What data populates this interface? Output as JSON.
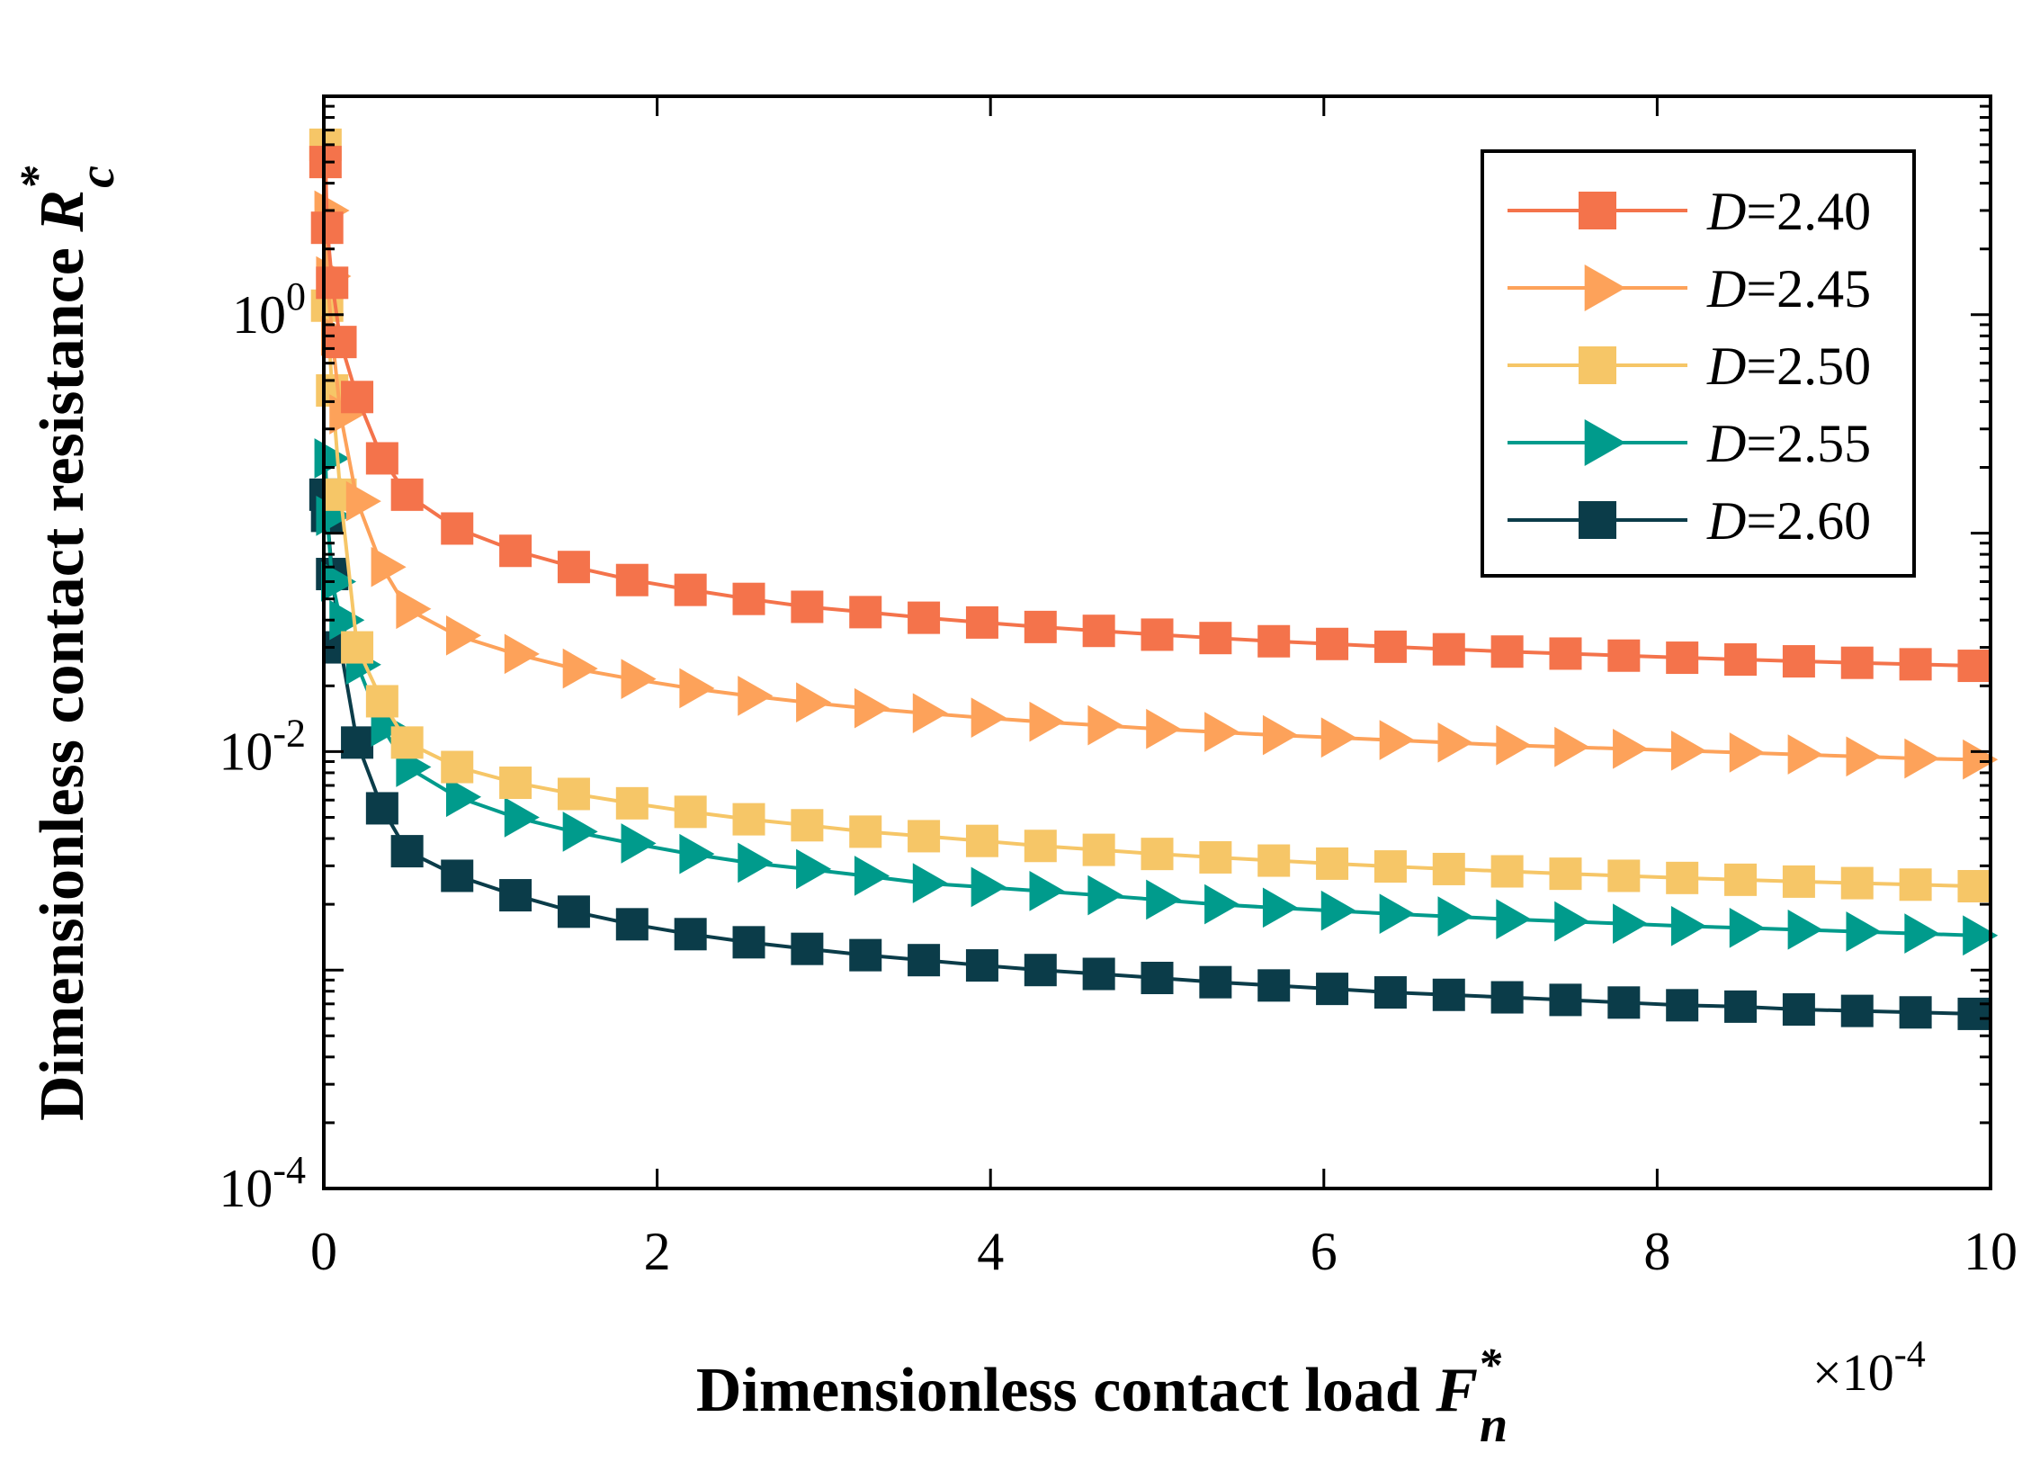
{
  "chart_data": {
    "type": "line",
    "xlabel": "Dimensionless contact load",
    "xlabel_symbol": "F",
    "xlabel_superscript": "*",
    "xlabel_subscript": "n",
    "ylabel": "Dimensionless contact resistance",
    "ylabel_symbol": "R",
    "ylabel_superscript": "*",
    "ylabel_subscript": "c",
    "x_multiplier": "×10",
    "x_multiplier_exponent": "-4",
    "x_scale_factor": 0.0001,
    "xlim": [
      0,
      10
    ],
    "ylim": [
      0.0001,
      10
    ],
    "yscale": "log",
    "x_ticks": [
      "0",
      "2",
      "4",
      "6",
      "8",
      "10"
    ],
    "y_ticks": [
      {
        "value": 1,
        "base": "10",
        "exp": "0"
      },
      {
        "value": 0.01,
        "base": "10",
        "exp": "-2"
      },
      {
        "value": 0.0001,
        "base": "10",
        "exp": "-4"
      }
    ],
    "legend_position": "top-right",
    "x": [
      0.01,
      0.02,
      0.05,
      0.1,
      0.2,
      0.35,
      0.5,
      0.8,
      1.15,
      1.5,
      1.85,
      2.2,
      2.55,
      2.9,
      3.25,
      3.6,
      3.95,
      4.3,
      4.65,
      5.0,
      5.35,
      5.7,
      6.05,
      6.4,
      6.75,
      7.1,
      7.45,
      7.8,
      8.15,
      8.5,
      8.85,
      9.2,
      9.55,
      9.9
    ],
    "series": [
      {
        "name": "D=2.40",
        "label_var": "D",
        "label_val": "=2.40",
        "marker": "square",
        "color": "#F4734B",
        "values": [
          5.0,
          2.5,
          1.4,
          0.75,
          0.42,
          0.22,
          0.15,
          0.105,
          0.083,
          0.07,
          0.061,
          0.055,
          0.05,
          0.046,
          0.0435,
          0.041,
          0.039,
          0.0372,
          0.0357,
          0.0343,
          0.0331,
          0.032,
          0.0311,
          0.0302,
          0.0294,
          0.0287,
          0.0281,
          0.0275,
          0.0269,
          0.0264,
          0.0259,
          0.0255,
          0.0251,
          0.0247
        ]
      },
      {
        "name": "D=2.45",
        "label_var": "D",
        "label_val": "=2.45",
        "marker": "triangle-right",
        "color": "#FDA25A",
        "values": [
          3.0,
          1.5,
          0.8,
          0.35,
          0.14,
          0.07,
          0.045,
          0.034,
          0.028,
          0.024,
          0.0215,
          0.0195,
          0.018,
          0.0168,
          0.0158,
          0.015,
          0.0143,
          0.0137,
          0.0132,
          0.0127,
          0.0123,
          0.0119,
          0.0116,
          0.0113,
          0.011,
          0.0107,
          0.0105,
          0.0103,
          0.0101,
          0.0099,
          0.0097,
          0.0095,
          0.0093,
          0.0092
        ]
      },
      {
        "name": "D=2.50",
        "label_var": "D",
        "label_val": "=2.50",
        "marker": "square",
        "color": "#F6C667",
        "values": [
          6.0,
          1.1,
          0.45,
          0.15,
          0.03,
          0.017,
          0.011,
          0.0085,
          0.0072,
          0.0064,
          0.0058,
          0.0053,
          0.0049,
          0.0046,
          0.0043,
          0.0041,
          0.0039,
          0.0037,
          0.00355,
          0.0034,
          0.00328,
          0.00317,
          0.00307,
          0.00298,
          0.0029,
          0.00283,
          0.00276,
          0.0027,
          0.00264,
          0.00259,
          0.00254,
          0.0025,
          0.00246,
          0.00242
        ]
      },
      {
        "name": "D=2.55",
        "label_var": "D",
        "label_val": "=2.55",
        "marker": "triangle-right",
        "color": "#009B8C",
        "values": [
          0.22,
          0.12,
          0.06,
          0.04,
          0.025,
          0.013,
          0.0085,
          0.0062,
          0.005,
          0.0043,
          0.0038,
          0.0034,
          0.0031,
          0.0029,
          0.0027,
          0.0025,
          0.0024,
          0.0023,
          0.0022,
          0.0021,
          0.002,
          0.00193,
          0.00187,
          0.00181,
          0.00176,
          0.00171,
          0.00167,
          0.00163,
          0.00159,
          0.00156,
          0.00153,
          0.0015,
          0.00147,
          0.00144
        ]
      },
      {
        "name": "D=2.60",
        "label_var": "D",
        "label_val": "=2.60",
        "marker": "square",
        "color": "#0B3C49",
        "values": [
          0.15,
          0.12,
          0.065,
          0.03,
          0.011,
          0.0055,
          0.0035,
          0.0027,
          0.0022,
          0.00185,
          0.00162,
          0.00146,
          0.00134,
          0.00125,
          0.00117,
          0.00111,
          0.00105,
          0.001,
          0.00096,
          0.00092,
          0.00088,
          0.00085,
          0.00082,
          0.00079,
          0.00077,
          0.00075,
          0.00073,
          0.00071,
          0.00069,
          0.00068,
          0.00066,
          0.00065,
          0.00064,
          0.00063
        ]
      }
    ]
  }
}
